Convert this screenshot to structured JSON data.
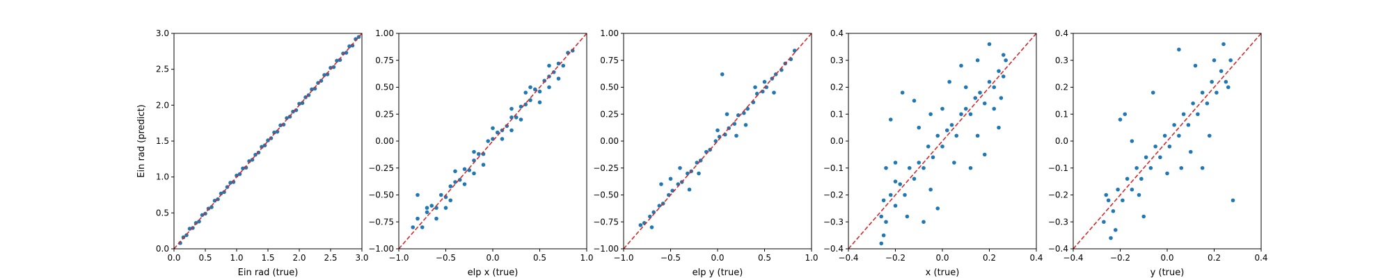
{
  "chart_data": [
    {
      "type": "scatter",
      "xlabel": "Ein rad (true)",
      "ylabel": "Ein rad (predict)",
      "xlim": [
        0,
        3
      ],
      "ylim": [
        0,
        3
      ],
      "xticks": [
        0,
        0.5,
        1,
        1.5,
        2,
        2.5,
        3
      ],
      "yticks": [
        0,
        0.5,
        1,
        1.5,
        2,
        2.5,
        3
      ],
      "xtick_labels": [
        "0.0",
        "0.5",
        "1.0",
        "1.5",
        "2.0",
        "2.5",
        "3.0"
      ],
      "ytick_labels": [
        "0.0",
        "0.5",
        "1.0",
        "1.5",
        "2.0",
        "2.5",
        "3.0"
      ],
      "reference_line": [
        [
          0,
          0
        ],
        [
          3,
          3
        ]
      ],
      "x": [
        0.1,
        0.15,
        0.2,
        0.25,
        0.3,
        0.35,
        0.4,
        0.45,
        0.5,
        0.55,
        0.6,
        0.65,
        0.7,
        0.75,
        0.8,
        0.85,
        0.9,
        0.95,
        1.0,
        1.05,
        1.1,
        1.15,
        1.2,
        1.25,
        1.3,
        1.35,
        1.4,
        1.45,
        1.5,
        1.55,
        1.6,
        1.65,
        1.7,
        1.75,
        1.8,
        1.85,
        1.9,
        1.95,
        2.0,
        2.05,
        2.1,
        2.15,
        2.2,
        2.25,
        2.3,
        2.35,
        2.4,
        2.45,
        2.5,
        2.55,
        2.6,
        2.65,
        2.7,
        2.75,
        2.8,
        2.85,
        2.9,
        2.95
      ],
      "y": [
        0.08,
        0.16,
        0.19,
        0.28,
        0.29,
        0.36,
        0.38,
        0.47,
        0.49,
        0.56,
        0.58,
        0.67,
        0.69,
        0.77,
        0.79,
        0.86,
        0.92,
        0.93,
        1.02,
        1.04,
        1.12,
        1.13,
        1.22,
        1.24,
        1.31,
        1.34,
        1.42,
        1.44,
        1.51,
        1.54,
        1.62,
        1.63,
        1.72,
        1.73,
        1.82,
        1.84,
        1.91,
        1.93,
        2.02,
        2.03,
        2.11,
        2.14,
        2.22,
        2.23,
        2.31,
        2.34,
        2.42,
        2.43,
        2.52,
        2.53,
        2.62,
        2.63,
        2.72,
        2.73,
        2.82,
        2.83,
        2.92,
        2.95
      ]
    },
    {
      "type": "scatter",
      "xlabel": "elp x (true)",
      "ylabel": "",
      "xlim": [
        -1,
        1
      ],
      "ylim": [
        -1,
        1
      ],
      "xticks": [
        -1,
        -0.5,
        0,
        0.5,
        1
      ],
      "yticks": [
        -1,
        -0.75,
        -0.5,
        -0.25,
        0,
        0.25,
        0.5,
        0.75,
        1
      ],
      "xtick_labels": [
        "−1.0",
        "−0.5",
        "0.0",
        "0.5",
        "1.0"
      ],
      "ytick_labels": [
        "−1.00",
        "−0.75",
        "−0.50",
        "−0.25",
        "0.00",
        "0.25",
        "0.50",
        "0.75",
        "1.00"
      ],
      "reference_line": [
        [
          -1,
          -1
        ],
        [
          1,
          1
        ]
      ],
      "x": [
        -0.85,
        -0.8,
        -0.75,
        -0.7,
        -0.65,
        -0.6,
        -0.55,
        -0.5,
        -0.45,
        -0.4,
        -0.35,
        -0.3,
        -0.25,
        -0.2,
        -0.15,
        -0.1,
        -0.05,
        0.0,
        0.05,
        0.1,
        0.15,
        0.2,
        0.25,
        0.3,
        0.35,
        0.4,
        0.45,
        0.5,
        0.55,
        0.6,
        0.65,
        0.7,
        0.75,
        0.8,
        0.85,
        -0.8,
        -0.7,
        -0.5,
        -0.4,
        -0.3,
        -0.2,
        -0.1,
        0.0,
        0.1,
        0.2,
        0.3,
        0.4,
        0.5,
        0.6,
        0.7,
        -0.6,
        -0.2,
        0.2,
        0.6,
        -0.45,
        0.35
      ],
      "y": [
        -0.8,
        -0.72,
        -0.8,
        -0.66,
        -0.6,
        -0.62,
        -0.5,
        -0.52,
        -0.42,
        -0.38,
        -0.36,
        -0.26,
        -0.27,
        -0.18,
        -0.12,
        -0.12,
        0.0,
        0.02,
        0.08,
        0.1,
        0.14,
        0.22,
        0.22,
        0.32,
        0.34,
        0.38,
        0.48,
        0.46,
        0.56,
        0.6,
        0.64,
        0.72,
        0.7,
        0.82,
        0.84,
        -0.5,
        -0.62,
        -0.62,
        -0.28,
        -0.4,
        -0.1,
        -0.22,
        0.12,
        0.02,
        0.3,
        0.2,
        0.5,
        0.36,
        0.7,
        0.58,
        -0.72,
        -0.3,
        0.1,
        0.5,
        -0.55,
        0.45
      ]
    },
    {
      "type": "scatter",
      "xlabel": "elp y (true)",
      "ylabel": "",
      "xlim": [
        -1,
        1
      ],
      "ylim": [
        -1,
        1
      ],
      "xticks": [
        -1,
        -0.5,
        0,
        0.5,
        1
      ],
      "yticks": [
        -1,
        -0.75,
        -0.5,
        -0.25,
        0,
        0.25,
        0.5,
        0.75,
        1
      ],
      "xtick_labels": [
        "−1.0",
        "−0.5",
        "0.0",
        "0.5",
        "1.0"
      ],
      "ytick_labels": [
        "−1.00",
        "−0.75",
        "−0.50",
        "−0.25",
        "0.00",
        "0.25",
        "0.50",
        "0.75",
        "1.00"
      ],
      "reference_line": [
        [
          -1,
          -1
        ],
        [
          1,
          1
        ]
      ],
      "x": [
        -0.82,
        -0.78,
        -0.72,
        -0.68,
        -0.62,
        -0.58,
        -0.52,
        -0.48,
        -0.42,
        -0.38,
        -0.32,
        -0.28,
        -0.22,
        -0.18,
        -0.12,
        -0.08,
        -0.02,
        0.02,
        0.08,
        0.12,
        0.18,
        0.22,
        0.28,
        0.32,
        0.38,
        0.42,
        0.48,
        0.52,
        0.58,
        0.62,
        0.68,
        0.72,
        0.78,
        0.82,
        -0.6,
        -0.4,
        -0.2,
        0.0,
        0.2,
        0.4,
        0.6,
        -0.5,
        -0.3,
        0.1,
        0.3,
        0.5,
        0.05,
        -0.7
      ],
      "y": [
        -0.78,
        -0.76,
        -0.7,
        -0.66,
        -0.6,
        -0.58,
        -0.5,
        -0.46,
        -0.4,
        -0.38,
        -0.3,
        -0.28,
        -0.2,
        -0.18,
        -0.1,
        -0.08,
        0.0,
        0.04,
        0.06,
        0.12,
        0.16,
        0.24,
        0.26,
        0.3,
        0.36,
        0.44,
        0.46,
        0.5,
        0.58,
        0.62,
        0.66,
        0.72,
        0.76,
        0.84,
        -0.4,
        -0.25,
        -0.3,
        0.1,
        0.05,
        0.5,
        0.45,
        -0.35,
        -0.45,
        0.25,
        0.15,
        0.55,
        0.62,
        -0.8
      ]
    },
    {
      "type": "scatter",
      "xlabel": "x (true)",
      "ylabel": "",
      "xlim": [
        -0.4,
        0.4
      ],
      "ylim": [
        -0.4,
        0.4
      ],
      "xticks": [
        -0.4,
        -0.2,
        0,
        0.2,
        0.4
      ],
      "yticks": [
        -0.4,
        -0.3,
        -0.2,
        -0.1,
        0,
        0.1,
        0.2,
        0.3,
        0.4
      ],
      "xtick_labels": [
        "−0.4",
        "−0.2",
        "0.0",
        "0.2",
        "0.4"
      ],
      "ytick_labels": [
        "−0.4",
        "−0.3",
        "−0.2",
        "−0.1",
        "0.0",
        "0.1",
        "0.2",
        "0.3",
        "0.4"
      ],
      "reference_line": [
        [
          -0.4,
          -0.4
        ],
        [
          0.4,
          0.4
        ]
      ],
      "x": [
        -0.26,
        -0.25,
        -0.24,
        -0.22,
        -0.2,
        -0.18,
        -0.16,
        -0.14,
        -0.12,
        -0.1,
        -0.08,
        -0.06,
        -0.04,
        -0.02,
        0.0,
        0.02,
        0.04,
        0.06,
        0.08,
        0.1,
        0.12,
        0.14,
        0.16,
        0.18,
        0.2,
        0.22,
        0.24,
        0.26,
        0.27,
        -0.25,
        -0.2,
        -0.15,
        -0.1,
        -0.05,
        0.0,
        0.05,
        0.1,
        0.15,
        0.2,
        0.25,
        -0.22,
        -0.12,
        -0.02,
        0.08,
        0.18,
        -0.24,
        0.26,
        -0.08,
        0.12,
        -0.26,
        0.22,
        -0.17,
        0.03,
        0.15,
        -0.2,
        0.24,
        -0.05
      ],
      "y": [
        -0.28,
        -0.22,
        -0.3,
        -0.2,
        -0.24,
        -0.16,
        -0.2,
        -0.1,
        -0.14,
        -0.08,
        -0.1,
        -0.02,
        -0.06,
        0.02,
        -0.02,
        0.04,
        0.06,
        0.02,
        0.1,
        0.12,
        0.1,
        0.16,
        0.18,
        0.14,
        0.22,
        0.2,
        0.26,
        0.24,
        0.3,
        -0.35,
        -0.08,
        -0.28,
        0.05,
        -0.18,
        0.12,
        -0.08,
        0.2,
        0.02,
        0.36,
        0.16,
        0.08,
        0.15,
        -0.25,
        0.28,
        -0.05,
        -0.1,
        0.32,
        -0.3,
        -0.1,
        -0.38,
        0.12,
        0.18,
        0.22,
        0.3,
        -0.15,
        0.05,
        0.1
      ]
    },
    {
      "type": "scatter",
      "xlabel": "y (true)",
      "ylabel": "",
      "xlim": [
        -0.4,
        0.4
      ],
      "ylim": [
        -0.4,
        0.4
      ],
      "xticks": [
        -0.4,
        -0.2,
        0,
        0.2,
        0.4
      ],
      "yticks": [
        -0.4,
        -0.3,
        -0.2,
        -0.1,
        0,
        0.1,
        0.2,
        0.3,
        0.4
      ],
      "xtick_labels": [
        "−0.4",
        "−0.2",
        "0.0",
        "0.2",
        "0.4"
      ],
      "ytick_labels": [
        "−0.4",
        "−0.3",
        "−0.2",
        "−0.1",
        "0.0",
        "0.1",
        "0.2",
        "0.3",
        "0.4"
      ],
      "reference_line": [
        [
          -0.4,
          -0.4
        ],
        [
          0.4,
          0.4
        ]
      ],
      "x": [
        -0.27,
        -0.25,
        -0.23,
        -0.21,
        -0.19,
        -0.17,
        -0.15,
        -0.13,
        -0.11,
        -0.09,
        -0.07,
        -0.05,
        -0.03,
        -0.01,
        0.01,
        0.03,
        0.05,
        0.07,
        0.09,
        0.11,
        0.13,
        0.15,
        0.17,
        0.19,
        0.21,
        0.23,
        0.25,
        0.27,
        -0.24,
        -0.18,
        -0.12,
        -0.06,
        0.0,
        0.06,
        0.12,
        0.18,
        0.24,
        -0.2,
        -0.1,
        0.1,
        0.2,
        -0.26,
        0.26,
        0.05,
        -0.15,
        0.15,
        0.28,
        -0.22
      ],
      "y": [
        -0.3,
        -0.22,
        -0.26,
        -0.18,
        -0.22,
        -0.14,
        -0.18,
        -0.1,
        -0.14,
        -0.06,
        -0.1,
        -0.02,
        -0.06,
        0.02,
        -0.02,
        0.06,
        0.02,
        0.1,
        0.06,
        0.14,
        0.1,
        0.18,
        0.14,
        0.22,
        0.18,
        0.26,
        0.22,
        0.3,
        -0.36,
        0.1,
        -0.2,
        0.18,
        -0.12,
        -0.1,
        0.28,
        0.02,
        0.36,
        0.08,
        -0.28,
        -0.04,
        0.3,
        -0.2,
        0.2,
        0.34,
        0.0,
        -0.1,
        -0.22,
        -0.33
      ]
    }
  ]
}
